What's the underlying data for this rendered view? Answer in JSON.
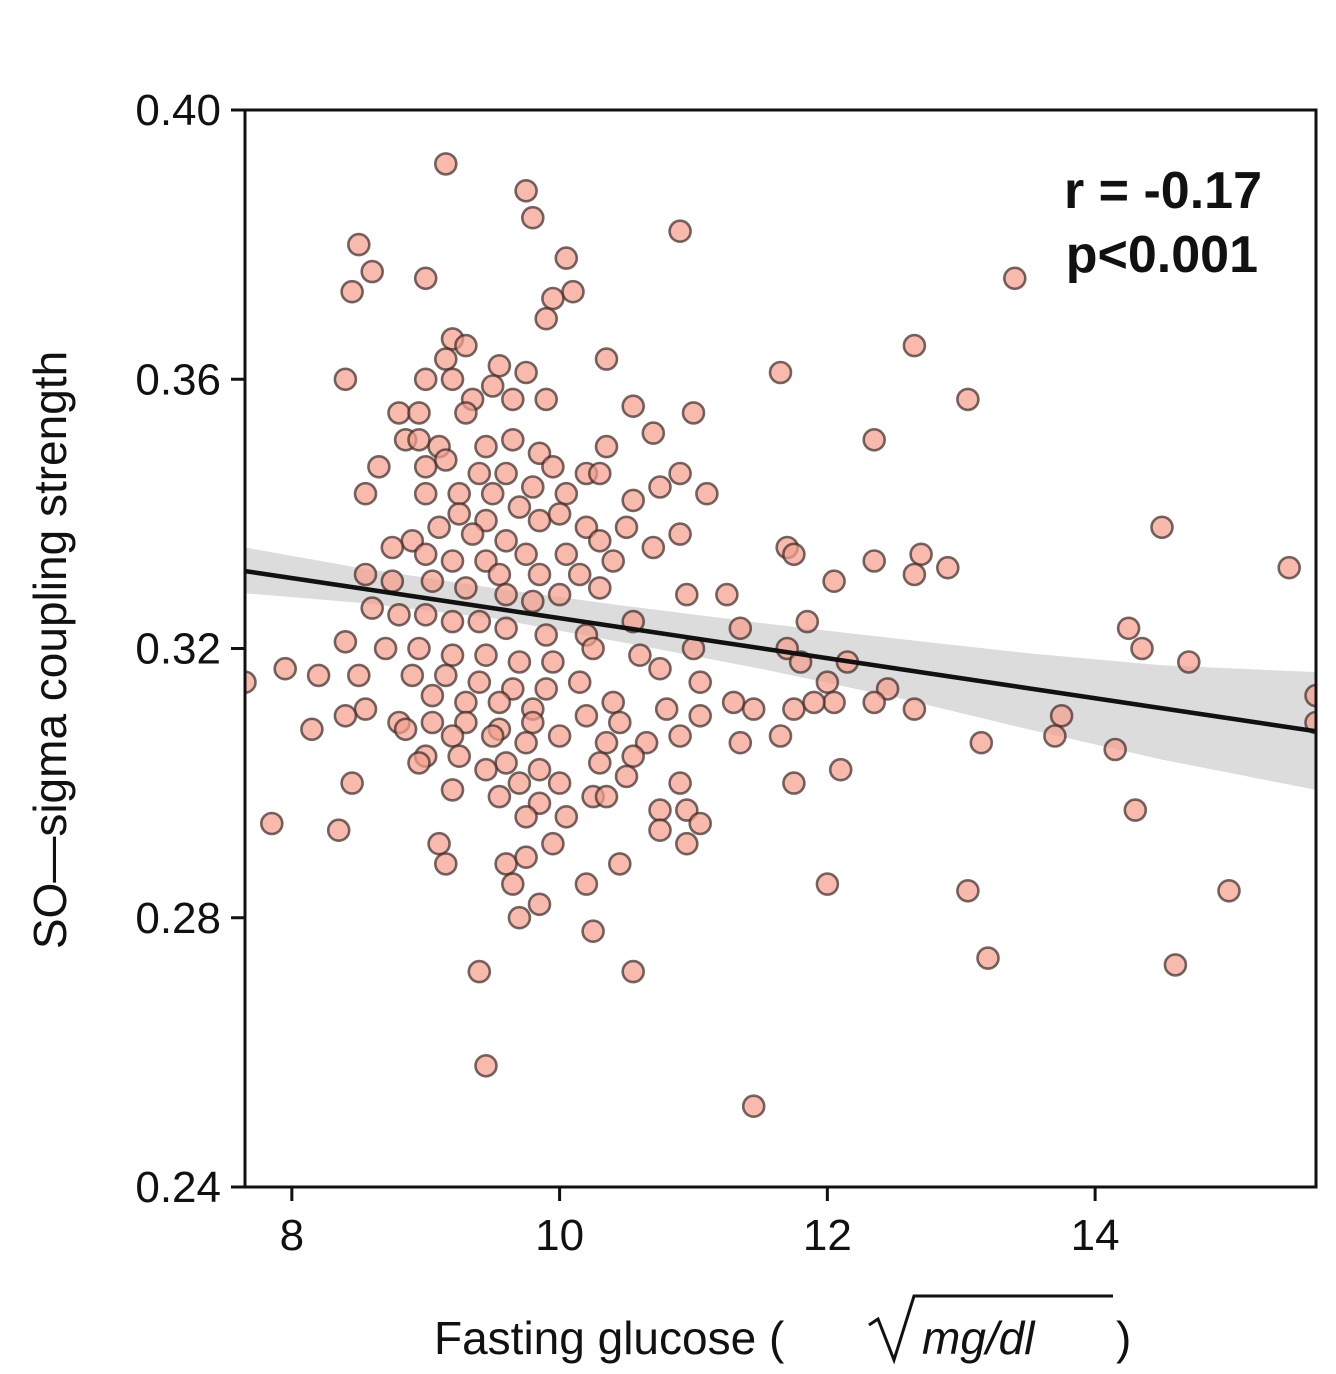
{
  "chart_data": {
    "type": "scatter",
    "xlabel_prefix": "Fasting glucose (",
    "xlabel_unit": "mg/dl",
    "xlabel_suffix": ")",
    "ylabel": "SO—sigma coupling strength",
    "xlim": [
      7.65,
      15.65
    ],
    "ylim": [
      0.24,
      0.4
    ],
    "xticks": [
      8,
      10,
      12,
      14
    ],
    "yticks": [
      0.24,
      0.28,
      0.32,
      0.36,
      0.4
    ],
    "ytick_labels": [
      "0.24",
      "0.28",
      "0.32",
      "0.36",
      "0.40"
    ],
    "xtick_labels": [
      "8",
      "10",
      "12",
      "14"
    ],
    "annotation": {
      "line1": "r = -0.17",
      "line2": "p<0.001"
    },
    "grid": false,
    "legend": "none",
    "colors": {
      "marker_fill": "#f4a08c",
      "marker_edge": "#3a2a26",
      "fit_line": "#111111",
      "ci_band": "#d0d0d0"
    },
    "fit": {
      "x": [
        7.65,
        15.65
      ],
      "y": [
        0.3315,
        0.3077
      ]
    },
    "ci": {
      "x": [
        7.65,
        8.5,
        9.5,
        10.5,
        11.5,
        12.5,
        13.5,
        14.5,
        15.65
      ],
      "lower": [
        0.3282,
        0.3268,
        0.3245,
        0.3208,
        0.317,
        0.3128,
        0.308,
        0.3035,
        0.299
      ],
      "upper": [
        0.335,
        0.332,
        0.329,
        0.3263,
        0.3238,
        0.3215,
        0.3193,
        0.3175,
        0.3165
      ]
    },
    "points": [
      [
        9.15,
        0.392
      ],
      [
        9.75,
        0.388
      ],
      [
        9.8,
        0.384
      ],
      [
        10.9,
        0.382
      ],
      [
        8.5,
        0.38
      ],
      [
        8.6,
        0.376
      ],
      [
        10.05,
        0.378
      ],
      [
        10.1,
        0.373
      ],
      [
        8.45,
        0.373
      ],
      [
        9.0,
        0.375
      ],
      [
        9.95,
        0.372
      ],
      [
        9.9,
        0.369
      ],
      [
        9.2,
        0.366
      ],
      [
        9.3,
        0.365
      ],
      [
        9.15,
        0.363
      ],
      [
        9.55,
        0.362
      ],
      [
        9.75,
        0.361
      ],
      [
        9.0,
        0.36
      ],
      [
        9.2,
        0.36
      ],
      [
        8.4,
        0.36
      ],
      [
        10.35,
        0.363
      ],
      [
        11.65,
        0.361
      ],
      [
        12.65,
        0.365
      ],
      [
        13.4,
        0.375
      ],
      [
        9.5,
        0.359
      ],
      [
        9.65,
        0.357
      ],
      [
        9.9,
        0.357
      ],
      [
        9.35,
        0.357
      ],
      [
        9.3,
        0.355
      ],
      [
        10.55,
        0.356
      ],
      [
        11.0,
        0.355
      ],
      [
        8.8,
        0.355
      ],
      [
        8.95,
        0.355
      ],
      [
        13.05,
        0.357
      ],
      [
        8.85,
        0.351
      ],
      [
        8.95,
        0.351
      ],
      [
        9.1,
        0.35
      ],
      [
        10.7,
        0.352
      ],
      [
        12.35,
        0.351
      ],
      [
        10.35,
        0.35
      ],
      [
        9.45,
        0.35
      ],
      [
        9.65,
        0.351
      ],
      [
        9.85,
        0.349
      ],
      [
        9.95,
        0.347
      ],
      [
        9.15,
        0.348
      ],
      [
        8.65,
        0.347
      ],
      [
        9.0,
        0.347
      ],
      [
        10.2,
        0.346
      ],
      [
        10.3,
        0.346
      ],
      [
        10.9,
        0.346
      ],
      [
        9.6,
        0.346
      ],
      [
        9.4,
        0.346
      ],
      [
        9.8,
        0.344
      ],
      [
        9.25,
        0.343
      ],
      [
        9.5,
        0.343
      ],
      [
        9.7,
        0.341
      ],
      [
        10.05,
        0.343
      ],
      [
        10.55,
        0.342
      ],
      [
        10.75,
        0.344
      ],
      [
        11.1,
        0.343
      ],
      [
        8.55,
        0.343
      ],
      [
        9.0,
        0.343
      ],
      [
        9.25,
        0.34
      ],
      [
        9.45,
        0.339
      ],
      [
        9.85,
        0.339
      ],
      [
        10.0,
        0.34
      ],
      [
        10.2,
        0.338
      ],
      [
        10.5,
        0.338
      ],
      [
        10.9,
        0.337
      ],
      [
        9.1,
        0.338
      ],
      [
        9.35,
        0.337
      ],
      [
        9.6,
        0.336
      ],
      [
        9.75,
        0.334
      ],
      [
        10.05,
        0.334
      ],
      [
        10.3,
        0.336
      ],
      [
        8.9,
        0.336
      ],
      [
        8.75,
        0.335
      ],
      [
        9.0,
        0.334
      ],
      [
        9.2,
        0.333
      ],
      [
        9.45,
        0.333
      ],
      [
        9.55,
        0.331
      ],
      [
        9.85,
        0.331
      ],
      [
        10.15,
        0.331
      ],
      [
        10.4,
        0.333
      ],
      [
        10.7,
        0.335
      ],
      [
        11.7,
        0.335
      ],
      [
        11.75,
        0.334
      ],
      [
        12.35,
        0.333
      ],
      [
        12.7,
        0.334
      ],
      [
        12.65,
        0.331
      ],
      [
        12.9,
        0.332
      ],
      [
        14.5,
        0.338
      ],
      [
        15.45,
        0.332
      ],
      [
        8.55,
        0.331
      ],
      [
        8.75,
        0.33
      ],
      [
        9.05,
        0.33
      ],
      [
        9.3,
        0.329
      ],
      [
        9.6,
        0.328
      ],
      [
        9.8,
        0.327
      ],
      [
        10.0,
        0.328
      ],
      [
        10.3,
        0.329
      ],
      [
        10.95,
        0.328
      ],
      [
        12.05,
        0.33
      ],
      [
        11.25,
        0.328
      ],
      [
        8.6,
        0.326
      ],
      [
        8.8,
        0.325
      ],
      [
        9.0,
        0.325
      ],
      [
        9.2,
        0.324
      ],
      [
        9.4,
        0.324
      ],
      [
        9.6,
        0.323
      ],
      [
        9.9,
        0.322
      ],
      [
        10.2,
        0.322
      ],
      [
        10.55,
        0.324
      ],
      [
        11.35,
        0.323
      ],
      [
        11.85,
        0.324
      ],
      [
        14.25,
        0.323
      ],
      [
        8.4,
        0.321
      ],
      [
        8.7,
        0.32
      ],
      [
        8.95,
        0.32
      ],
      [
        9.2,
        0.319
      ],
      [
        9.45,
        0.319
      ],
      [
        9.7,
        0.318
      ],
      [
        9.95,
        0.318
      ],
      [
        10.25,
        0.32
      ],
      [
        10.6,
        0.319
      ],
      [
        11.0,
        0.32
      ],
      [
        11.7,
        0.32
      ],
      [
        11.8,
        0.318
      ],
      [
        12.15,
        0.318
      ],
      [
        14.35,
        0.32
      ],
      [
        14.7,
        0.318
      ],
      [
        7.65,
        0.315
      ],
      [
        7.95,
        0.317
      ],
      [
        8.2,
        0.316
      ],
      [
        8.5,
        0.316
      ],
      [
        8.9,
        0.316
      ],
      [
        9.15,
        0.316
      ],
      [
        9.4,
        0.315
      ],
      [
        9.65,
        0.314
      ],
      [
        9.9,
        0.314
      ],
      [
        10.15,
        0.315
      ],
      [
        10.75,
        0.317
      ],
      [
        11.05,
        0.315
      ],
      [
        12.0,
        0.315
      ],
      [
        12.45,
        0.314
      ],
      [
        12.05,
        0.312
      ],
      [
        9.05,
        0.313
      ],
      [
        9.3,
        0.312
      ],
      [
        9.55,
        0.312
      ],
      [
        9.8,
        0.311
      ],
      [
        10.4,
        0.312
      ],
      [
        11.3,
        0.312
      ],
      [
        11.45,
        0.311
      ],
      [
        12.35,
        0.312
      ],
      [
        12.65,
        0.311
      ],
      [
        15.65,
        0.313
      ],
      [
        8.55,
        0.311
      ],
      [
        8.8,
        0.309
      ],
      [
        9.05,
        0.309
      ],
      [
        9.3,
        0.309
      ],
      [
        9.55,
        0.308
      ],
      [
        9.8,
        0.309
      ],
      [
        10.2,
        0.31
      ],
      [
        10.45,
        0.309
      ],
      [
        10.8,
        0.311
      ],
      [
        11.05,
        0.31
      ],
      [
        11.75,
        0.311
      ],
      [
        11.9,
        0.312
      ],
      [
        13.75,
        0.31
      ],
      [
        15.65,
        0.309
      ],
      [
        8.4,
        0.31
      ],
      [
        8.15,
        0.308
      ],
      [
        8.85,
        0.308
      ],
      [
        9.2,
        0.307
      ],
      [
        9.5,
        0.307
      ],
      [
        9.75,
        0.306
      ],
      [
        10.0,
        0.307
      ],
      [
        10.35,
        0.306
      ],
      [
        10.65,
        0.306
      ],
      [
        10.9,
        0.307
      ],
      [
        11.35,
        0.306
      ],
      [
        11.65,
        0.307
      ],
      [
        13.15,
        0.306
      ],
      [
        13.7,
        0.307
      ],
      [
        14.15,
        0.305
      ],
      [
        9.0,
        0.304
      ],
      [
        9.25,
        0.304
      ],
      [
        9.6,
        0.303
      ],
      [
        9.85,
        0.302
      ],
      [
        10.3,
        0.303
      ],
      [
        10.55,
        0.304
      ],
      [
        8.95,
        0.303
      ],
      [
        12.1,
        0.302
      ],
      [
        9.45,
        0.302
      ],
      [
        9.7,
        0.3
      ],
      [
        10.0,
        0.3
      ],
      [
        10.5,
        0.301
      ],
      [
        11.75,
        0.3
      ],
      [
        8.45,
        0.3
      ],
      [
        9.2,
        0.299
      ],
      [
        9.55,
        0.298
      ],
      [
        9.85,
        0.297
      ],
      [
        10.25,
        0.298
      ],
      [
        10.35,
        0.298
      ],
      [
        10.9,
        0.3
      ],
      [
        9.75,
        0.295
      ],
      [
        10.05,
        0.295
      ],
      [
        10.75,
        0.296
      ],
      [
        10.95,
        0.296
      ],
      [
        11.05,
        0.294
      ],
      [
        14.3,
        0.296
      ],
      [
        7.85,
        0.294
      ],
      [
        8.35,
        0.293
      ],
      [
        9.1,
        0.291
      ],
      [
        9.95,
        0.291
      ],
      [
        10.75,
        0.293
      ],
      [
        10.95,
        0.291
      ],
      [
        9.15,
        0.288
      ],
      [
        9.6,
        0.288
      ],
      [
        9.75,
        0.289
      ],
      [
        10.45,
        0.288
      ],
      [
        9.65,
        0.285
      ],
      [
        10.2,
        0.285
      ],
      [
        12.0,
        0.285
      ],
      [
        13.05,
        0.284
      ],
      [
        15.0,
        0.284
      ],
      [
        9.85,
        0.282
      ],
      [
        9.7,
        0.28
      ],
      [
        10.25,
        0.278
      ],
      [
        13.2,
        0.274
      ],
      [
        14.6,
        0.273
      ],
      [
        9.4,
        0.272
      ],
      [
        10.55,
        0.272
      ],
      [
        9.45,
        0.258
      ],
      [
        11.45,
        0.252
      ]
    ]
  }
}
